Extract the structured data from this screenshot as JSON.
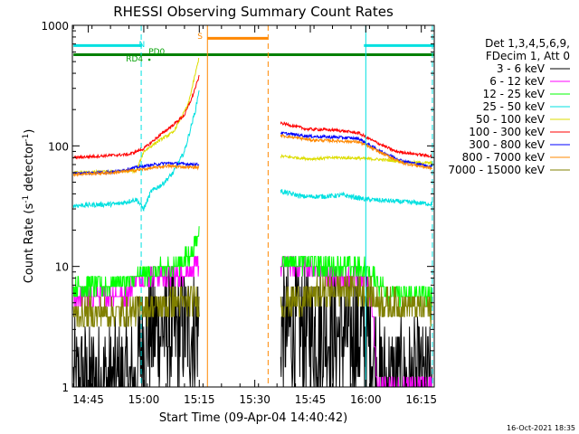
{
  "chart_data": {
    "type": "line",
    "title": "RHESSI Observing Summary Count Rates",
    "xlabel": "Start Time (09-Apr-04 14:40:42)",
    "ylabel": "Count Rate (s⁻¹ detector⁻¹)",
    "ylabel_parts": {
      "main": "Count Rate (s",
      "sup1": "-1",
      "mid": " detector",
      "sup2": "-1",
      "end": ")"
    },
    "y_scale": "log",
    "ylim": [
      1,
      1000
    ],
    "xlim_min": [
      40.7,
      138.5
    ],
    "x_ticks": [
      {
        "label": "14:45",
        "min": 45
      },
      {
        "label": "15:00",
        "min": 60
      },
      {
        "label": "15:15",
        "min": 75
      },
      {
        "label": "15:30",
        "min": 90
      },
      {
        "label": "15:45",
        "min": 105
      },
      {
        "label": "16:00",
        "min": 120
      },
      {
        "label": "16:15",
        "min": 135
      }
    ],
    "y_ticks": [
      {
        "label": "1",
        "value": 1
      },
      {
        "label": "10",
        "value": 10
      },
      {
        "label": "100",
        "value": 100
      },
      {
        "label": "1000",
        "value": 1000
      }
    ],
    "legend_header": [
      "Det 1,3,4,5,6,9,",
      "FDecim 1, Att 0"
    ],
    "legend_position": "right",
    "series": [
      {
        "name": "3 - 6 keV",
        "color": "#000000",
        "pre": [
          [
            41,
            1
          ],
          [
            58,
            1
          ],
          [
            58.5,
            1.6
          ],
          [
            59.5,
            2.2
          ],
          [
            60.5,
            2.7
          ],
          [
            62,
            2.9
          ],
          [
            74.5,
            3.0
          ],
          [
            75,
            3.0
          ]
        ],
        "post": [
          [
            97,
            3.0
          ],
          [
            105,
            2.9
          ],
          [
            112,
            2.8
          ],
          [
            120,
            2.6
          ],
          [
            122,
            2.0
          ],
          [
            124,
            1.0
          ],
          [
            138,
            1.0
          ]
        ],
        "noise": 0.35
      },
      {
        "name": "6 - 12 keV",
        "color": "#ff00ff",
        "pre": [
          [
            41,
            5.5
          ],
          [
            56,
            6.0
          ],
          [
            57,
            7.5
          ],
          [
            63,
            8.2
          ],
          [
            70,
            8.5
          ],
          [
            74,
            9.5
          ],
          [
            75,
            11
          ]
        ],
        "post": [
          [
            97,
            10.5
          ],
          [
            105,
            9.5
          ],
          [
            112,
            8.2
          ],
          [
            118,
            8.0
          ],
          [
            120,
            7.5
          ],
          [
            122,
            4
          ],
          [
            123,
            1
          ],
          [
            138,
            1
          ]
        ],
        "noise": 0.05
      },
      {
        "name": "12 - 25 keV",
        "color": "#00ff00",
        "pre": [
          [
            41,
            6.5
          ],
          [
            56,
            7.5
          ],
          [
            60,
            8.5
          ],
          [
            66,
            9.5
          ],
          [
            71,
            11
          ],
          [
            74,
            15
          ],
          [
            75,
            20
          ]
        ],
        "post": [
          [
            97,
            11.5
          ],
          [
            105,
            10.5
          ],
          [
            112,
            9.8
          ],
          [
            118,
            9.8
          ],
          [
            120,
            9.5
          ],
          [
            126,
            6.0
          ],
          [
            138,
            5.5
          ]
        ],
        "noise": 0.05
      },
      {
        "name": "25 - 50 keV",
        "color": "#00e0e0",
        "pre": [
          [
            41,
            32
          ],
          [
            53,
            33
          ],
          [
            58,
            36
          ],
          [
            60,
            30
          ],
          [
            62,
            42
          ],
          [
            65,
            48
          ],
          [
            68,
            60
          ],
          [
            71,
            90
          ],
          [
            74,
            200
          ],
          [
            75,
            300
          ]
        ],
        "post": [
          [
            97,
            42
          ],
          [
            103,
            38
          ],
          [
            108,
            38
          ],
          [
            114,
            39
          ],
          [
            120,
            36
          ],
          [
            126,
            35
          ],
          [
            138,
            33
          ]
        ],
        "noise": 0.02
      },
      {
        "name": "50 - 100 keV",
        "color": "#dddd00",
        "pre": [
          [
            41,
            60
          ],
          [
            58,
            62
          ],
          [
            60,
            90
          ],
          [
            64,
            110
          ],
          [
            68,
            130
          ],
          [
            72,
            220
          ],
          [
            75,
            550
          ]
        ],
        "post": [
          [
            97,
            82
          ],
          [
            105,
            78
          ],
          [
            112,
            80
          ],
          [
            118,
            79
          ],
          [
            124,
            77
          ],
          [
            132,
            73
          ],
          [
            138,
            72
          ]
        ],
        "noise": 0.012
      },
      {
        "name": "100 - 300 keV",
        "color": "#ff0000",
        "pre": [
          [
            41,
            80
          ],
          [
            56,
            85
          ],
          [
            60,
            95
          ],
          [
            64,
            120
          ],
          [
            68,
            150
          ],
          [
            71,
            180
          ],
          [
            73,
            250
          ],
          [
            75,
            380
          ]
        ],
        "post": [
          [
            97,
            155
          ],
          [
            104,
            138
          ],
          [
            112,
            135
          ],
          [
            118,
            128
          ],
          [
            122,
            110
          ],
          [
            128,
            90
          ],
          [
            138,
            82
          ]
        ],
        "noise": 0.012
      },
      {
        "name": "300 - 800 keV",
        "color": "#0000ff",
        "pre": [
          [
            41,
            59
          ],
          [
            52,
            61
          ],
          [
            60,
            68
          ],
          [
            66,
            72
          ],
          [
            75,
            70
          ]
        ],
        "post": [
          [
            97,
            128
          ],
          [
            105,
            120
          ],
          [
            112,
            118
          ],
          [
            118,
            115
          ],
          [
            124,
            90
          ],
          [
            130,
            75
          ],
          [
            138,
            67
          ]
        ],
        "noise": 0.012
      },
      {
        "name": "800 - 7000 keV",
        "color": "#ff8800",
        "pre": [
          [
            41,
            58
          ],
          [
            52,
            60
          ],
          [
            60,
            64
          ],
          [
            66,
            68
          ],
          [
            75,
            66
          ]
        ],
        "post": [
          [
            97,
            122
          ],
          [
            105,
            112
          ],
          [
            112,
            110
          ],
          [
            118,
            108
          ],
          [
            124,
            88
          ],
          [
            130,
            72
          ],
          [
            138,
            65
          ]
        ],
        "noise": 0.012
      },
      {
        "name": "7000 - 15000 keV",
        "color": "#808000",
        "pre": [
          [
            41,
            4.0
          ],
          [
            56,
            4.2
          ],
          [
            60,
            4.6
          ],
          [
            70,
            5.0
          ],
          [
            75,
            5.2
          ]
        ],
        "post": [
          [
            97,
            5.0
          ],
          [
            105,
            5.5
          ],
          [
            112,
            6.5
          ],
          [
            118,
            6.5
          ],
          [
            120,
            6.0
          ],
          [
            126,
            4.8
          ],
          [
            138,
            4.5
          ]
        ],
        "noise": 0.08
      }
    ],
    "annotations": [
      {
        "text": "S",
        "color": "#ff8800",
        "x_min": 75.2
      },
      {
        "text": "N",
        "color": "#00e0e0",
        "x_min": 59.5
      },
      {
        "text": "PD0",
        "color": "#00a000",
        "x_min": 63.5
      },
      {
        "text": "RD4",
        "color": "#00a000",
        "x_min": 57.5
      }
    ],
    "status_bars": [
      {
        "color": "#00e0e0",
        "segments": [
          [
            41,
            59.5
          ],
          [
            119.5,
            138.5
          ]
        ],
        "value": 680
      },
      {
        "color": "#ff8800",
        "segments": [
          [
            77.2,
            93.5
          ]
        ],
        "value": 780
      },
      {
        "color": "#008000",
        "segments": [
          [
            41,
            138.5
          ]
        ],
        "value": 570
      }
    ],
    "vlines": [
      {
        "x_min": 59.3,
        "color": "#00e0e0",
        "style": "dashed"
      },
      {
        "x_min": 77.2,
        "color": "#ff8800",
        "style": "solid"
      },
      {
        "x_min": 93.6,
        "color": "#ff8800",
        "style": "dashed"
      },
      {
        "x_min": 120.0,
        "color": "#00e0e0",
        "style": "solid"
      },
      {
        "x_min": 138.0,
        "color": "#00e0e0",
        "style": "dashed"
      }
    ],
    "gap": [
      75.3,
      96.8
    ]
  },
  "footer": {
    "timestamp": "16-Oct-2021 18:35"
  }
}
